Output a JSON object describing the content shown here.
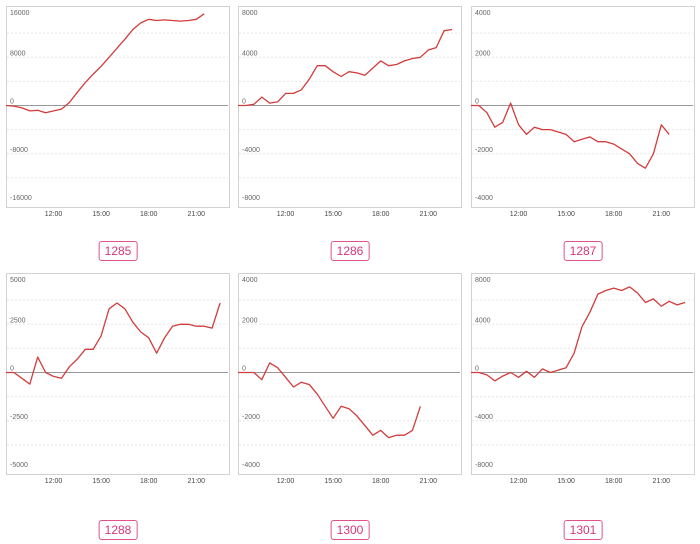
{
  "colors": {
    "line": "#d23c3c",
    "zero_line": "#999999",
    "grid": "#e6e6e6",
    "badge": "#e0528a"
  },
  "chart_data": [
    {
      "type": "line",
      "label": "1285",
      "ylim": [
        -16000,
        16000
      ],
      "yticks": [
        16000,
        8000,
        0,
        -8000,
        -16000
      ],
      "ytick_labels": [
        "16000",
        "8000",
        "0",
        "-8000",
        "-16000"
      ],
      "xticks": [
        "12:00",
        "15:00",
        "18:00",
        "21:00"
      ],
      "x": [
        9.0,
        9.5,
        10.0,
        10.5,
        11.0,
        11.5,
        12.0,
        12.5,
        13.0,
        13.5,
        14.0,
        14.5,
        15.0,
        15.5,
        16.0,
        16.5,
        17.0,
        17.5,
        18.0,
        18.5,
        19.0,
        19.5,
        20.0,
        20.5,
        21.0,
        21.5
      ],
      "values": [
        0,
        -100,
        -400,
        -900,
        -800,
        -1200,
        -900,
        -600,
        500,
        2200,
        3800,
        5200,
        6500,
        8000,
        9500,
        11000,
        12600,
        13700,
        14300,
        14100,
        14200,
        14100,
        14000,
        14100,
        14300,
        15200
      ]
    },
    {
      "type": "line",
      "label": "1286",
      "ylim": [
        -8000,
        8000
      ],
      "yticks": [
        8000,
        4000,
        0,
        -4000,
        -8000
      ],
      "ytick_labels": [
        "8000",
        "4000",
        "0",
        "-4000",
        "-8000"
      ],
      "xticks": [
        "12:00",
        "15:00",
        "18:00",
        "21:00"
      ],
      "x": [
        9.0,
        9.5,
        10.0,
        10.5,
        11.0,
        11.5,
        12.0,
        12.5,
        13.0,
        13.5,
        14.0,
        14.5,
        15.0,
        15.5,
        16.0,
        16.5,
        17.0,
        17.5,
        18.0,
        18.5,
        19.0,
        19.5,
        20.0,
        20.5,
        21.0,
        21.5,
        22.0,
        22.5
      ],
      "values": [
        0,
        0,
        100,
        700,
        200,
        300,
        1000,
        1000,
        1300,
        2200,
        3300,
        3300,
        2800,
        2400,
        2800,
        2700,
        2500,
        3100,
        3700,
        3300,
        3400,
        3700,
        3900,
        4000,
        4600,
        4800,
        6200,
        6300
      ]
    },
    {
      "type": "line",
      "label": "1287",
      "ylim": [
        -4000,
        4000
      ],
      "yticks": [
        4000,
        2000,
        0,
        -2000,
        -4000
      ],
      "ytick_labels": [
        "4000",
        "2000",
        "0",
        "-2000",
        "-4000"
      ],
      "xticks": [
        "12:00",
        "15:00",
        "18:00",
        "21:00"
      ],
      "x": [
        9.0,
        9.5,
        10.0,
        10.5,
        11.0,
        11.5,
        12.0,
        12.5,
        13.0,
        13.5,
        14.0,
        14.5,
        15.0,
        15.5,
        16.0,
        16.5,
        17.0,
        17.5,
        18.0,
        18.5,
        19.0,
        19.5,
        20.0,
        20.5,
        21.0,
        21.5
      ],
      "values": [
        0,
        0,
        -300,
        -900,
        -700,
        100,
        -800,
        -1200,
        -900,
        -1000,
        -1000,
        -1100,
        -1200,
        -1500,
        -1400,
        -1300,
        -1500,
        -1500,
        -1600,
        -1800,
        -2000,
        -2400,
        -2600,
        -2000,
        -800,
        -1200
      ]
    },
    {
      "type": "line",
      "label": "1288",
      "ylim": [
        -5000,
        5000
      ],
      "yticks": [
        5000,
        2500,
        0,
        -2500,
        -5000
      ],
      "ytick_labels": [
        "5000",
        "2500",
        "0",
        "-2500",
        "-5000"
      ],
      "xticks": [
        "12:00",
        "15:00",
        "18:00",
        "21:00"
      ],
      "x": [
        9.0,
        9.5,
        10.0,
        10.5,
        11.0,
        11.5,
        12.0,
        12.5,
        13.0,
        13.5,
        14.0,
        14.5,
        15.0,
        15.5,
        16.0,
        16.5,
        17.0,
        17.5,
        18.0,
        18.5,
        19.0,
        19.5,
        20.0,
        20.5,
        21.0,
        21.5,
        22.0,
        22.5
      ],
      "values": [
        0,
        0,
        -300,
        -600,
        800,
        0,
        -200,
        -300,
        300,
        700,
        1200,
        1200,
        1900,
        3300,
        3600,
        3300,
        2600,
        2100,
        1800,
        1000,
        1800,
        2400,
        2500,
        2500,
        2400,
        2400,
        2300,
        3600
      ]
    },
    {
      "type": "line",
      "label": "1300",
      "ylim": [
        -4000,
        4000
      ],
      "yticks": [
        4000,
        2000,
        0,
        -2000,
        -4000
      ],
      "ytick_labels": [
        "4000",
        "2000",
        "0",
        "-2000",
        "-4000"
      ],
      "xticks": [
        "12:00",
        "15:00",
        "18:00",
        "21:00"
      ],
      "x": [
        9.0,
        9.5,
        10.0,
        10.5,
        11.0,
        11.5,
        12.0,
        12.5,
        13.0,
        13.5,
        14.0,
        14.5,
        15.0,
        15.5,
        16.0,
        16.5,
        17.0,
        17.5,
        18.0,
        18.5,
        19.0,
        19.5,
        20.0,
        20.5
      ],
      "values": [
        0,
        0,
        0,
        -300,
        400,
        200,
        -200,
        -600,
        -400,
        -500,
        -900,
        -1400,
        -1900,
        -1400,
        -1500,
        -1800,
        -2200,
        -2600,
        -2400,
        -2700,
        -2600,
        -2600,
        -2400,
        -1400
      ]
    },
    {
      "type": "line",
      "label": "1301",
      "ylim": [
        -8000,
        8000
      ],
      "yticks": [
        8000,
        4000,
        0,
        -4000,
        -8000
      ],
      "ytick_labels": [
        "8000",
        "4000",
        "0",
        "-4000",
        "-8000"
      ],
      "xticks": [
        "12:00",
        "15:00",
        "18:00",
        "21:00"
      ],
      "x": [
        9.0,
        9.5,
        10.0,
        10.5,
        11.0,
        11.5,
        12.0,
        12.5,
        13.0,
        13.5,
        14.0,
        14.5,
        15.0,
        15.5,
        16.0,
        16.5,
        17.0,
        17.5,
        18.0,
        18.5,
        19.0,
        19.5,
        20.0,
        20.5,
        21.0,
        21.5,
        22.0,
        22.5
      ],
      "values": [
        0,
        0,
        -200,
        -700,
        -300,
        0,
        -400,
        100,
        -400,
        300,
        0,
        200,
        400,
        1600,
        3800,
        5000,
        6500,
        6800,
        7000,
        6800,
        7100,
        6600,
        5800,
        6100,
        5500,
        5900,
        5600,
        5800
      ]
    }
  ]
}
